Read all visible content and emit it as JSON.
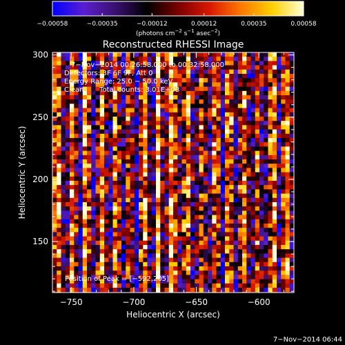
{
  "chart_data": {
    "type": "heatmap",
    "title": "Reconstructed RHESSI Image",
    "xlabel": "Heliocentric X (arcsec)",
    "ylabel": "Heliocentric Y (arcsec)",
    "xlim": [
      -765,
      -572
    ],
    "ylim": [
      109,
      302
    ],
    "x_ticks": [
      -750,
      -700,
      -650,
      -600
    ],
    "y_ticks": [
      150,
      200,
      250,
      300
    ],
    "x_tick_labels": [
      "−750",
      "−700",
      "−650",
      "−600"
    ],
    "y_tick_labels": [
      "150",
      "200",
      "250",
      "300"
    ],
    "colorbar": {
      "range": [
        -0.00058,
        0.00058
      ],
      "ticks": [
        -0.00058,
        -0.00035,
        -0.00012,
        0.00012,
        0.00035,
        0.00058
      ],
      "tick_labels": [
        "−0.00058",
        "−0.00035",
        "−0.00012",
        "0.00012",
        "0.00035",
        "0.00058"
      ],
      "unit_text": "(photons cm",
      "unit_sup1": "−2",
      "unit_mid": " s",
      "unit_sup2": "−1",
      "unit_mid2": " asec",
      "unit_sup3": "−2",
      "unit_end": ")",
      "colors": [
        "#0000ff",
        "#5a1fd0",
        "#3a1070",
        "#000000",
        "#7a0000",
        "#d81800",
        "#ff7800",
        "#ffd000",
        "#ffffd8"
      ]
    },
    "annotations": {
      "time_range": "7−Nov−2014 00:26:58.000 to 00:32:58.000",
      "detectors": "Detectors: 3F 6F 9F, Att 0",
      "energy": "Energy Range: 25.0 − 50.0 keV",
      "clean": "Clean",
      "counts": "Total counts: 3.01E+03",
      "peak": "Position of Peak = [−592,205]"
    },
    "peak_position": [
      -592,
      205
    ],
    "grid": false,
    "legend": "colorbar-top"
  },
  "footer_timestamp": "7−Nov−2014 06:44"
}
